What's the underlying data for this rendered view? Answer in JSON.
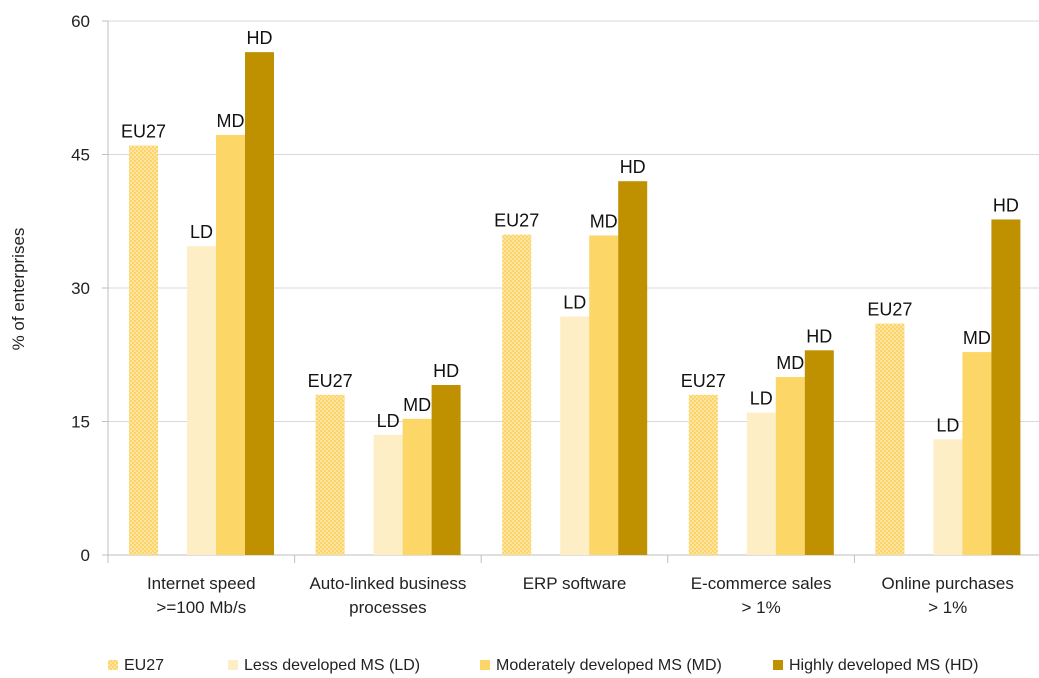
{
  "chart_data": {
    "type": "bar",
    "ylabel": "% of enterprises",
    "ylim": [
      0,
      60
    ],
    "yticks": [
      0,
      15,
      30,
      45,
      60
    ],
    "grid": true,
    "legend_position": "bottom",
    "categories": [
      [
        "Internet speed",
        ">=100 Mb/s"
      ],
      [
        "Auto-linked business",
        "processes"
      ],
      [
        "ERP software"
      ],
      [
        "E-commerce sales",
        "> 1%"
      ],
      [
        "Online purchases",
        "> 1%"
      ]
    ],
    "series": [
      {
        "name": "EU27",
        "label": "EU27",
        "color": "#fbd46a",
        "pattern": "dotted",
        "values": [
          46,
          18,
          36,
          18,
          26
        ]
      },
      {
        "name": "Less developed MS (LD)",
        "label": "LD",
        "color": "#fdeec6",
        "pattern": "solid",
        "values": [
          34.7,
          13.5,
          26.8,
          16,
          13
        ]
      },
      {
        "name": "Moderately developed MS (MD)",
        "label": "MD",
        "color": "#fcd667",
        "pattern": "solid",
        "values": [
          47.2,
          15.3,
          35.9,
          20,
          22.8
        ]
      },
      {
        "name": "Highly developed MS (HD)",
        "label": "HD",
        "color": "#bf9000",
        "pattern": "solid",
        "values": [
          56.5,
          19.1,
          42,
          23,
          37.7
        ]
      }
    ]
  }
}
